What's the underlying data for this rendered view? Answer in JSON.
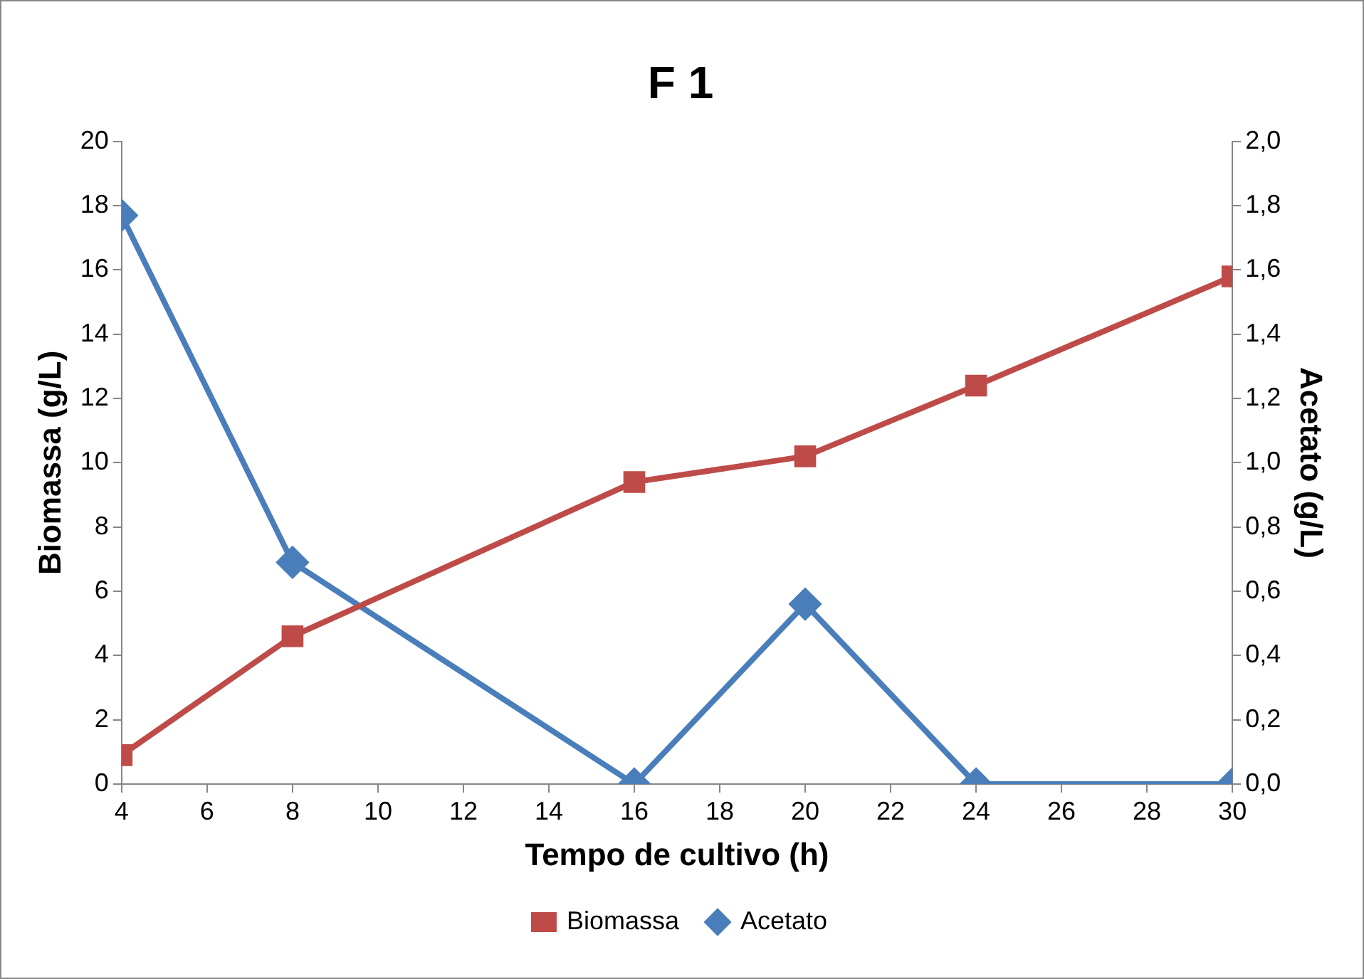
{
  "chart_data": {
    "type": "line",
    "title": "F 1",
    "xlabel": "Tempo de cultivo (h)",
    "ylabel": "Biomassa (g/L)",
    "y2label": "Acetato (g/L)",
    "x": [
      4,
      8,
      16,
      20,
      24,
      30
    ],
    "series": [
      {
        "name": "Biomassa",
        "color": "#be4b48",
        "marker": "square",
        "values": [
          0.9,
          4.6,
          9.4,
          10.2,
          12.4,
          15.8
        ]
      },
      {
        "name": "Acetato",
        "color": "#4a7ebb",
        "marker": "diamond",
        "axis": "y2",
        "values": [
          1.77,
          0.69,
          0.0,
          0.56,
          0.0,
          0.0
        ]
      }
    ],
    "xlim": [
      4,
      30
    ],
    "xticks": [
      4,
      6,
      8,
      10,
      12,
      14,
      16,
      18,
      20,
      22,
      24,
      26,
      28,
      30
    ],
    "ylim": [
      0,
      20
    ],
    "yticks": [
      0,
      2,
      4,
      6,
      8,
      10,
      12,
      14,
      16,
      18,
      20
    ],
    "y2lim": [
      0,
      2
    ],
    "y2ticks": [
      {
        "value": 0,
        "label": "0,0"
      },
      {
        "value": 0.2,
        "label": "0,2"
      },
      {
        "value": 0.4,
        "label": "0,4"
      },
      {
        "value": 0.6,
        "label": "0,6"
      },
      {
        "value": 0.8,
        "label": "0,8"
      },
      {
        "value": 1,
        "label": "1,0"
      },
      {
        "value": 1.2,
        "label": "1,2"
      },
      {
        "value": 1.4,
        "label": "1,4"
      },
      {
        "value": 1.6,
        "label": "1,6"
      },
      {
        "value": 1.8,
        "label": "1,8"
      },
      {
        "value": 2,
        "label": "2,0"
      }
    ],
    "grid": false,
    "legend": "bottom",
    "line_style": "solid"
  }
}
